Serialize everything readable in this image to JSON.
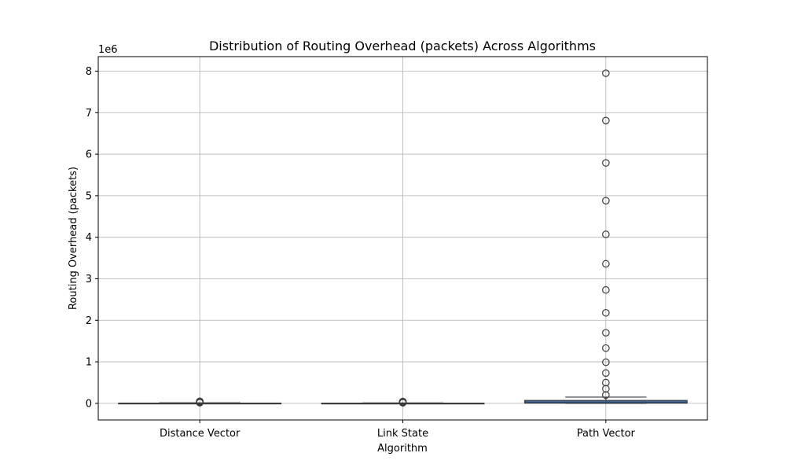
{
  "chart_data": {
    "type": "box",
    "title": "Distribution of Routing Overhead (packets) Across Algorithms",
    "xlabel": "Algorithm",
    "ylabel": "Routing Overhead (packets)",
    "y_offset_label": "1e6",
    "y_scale_note": "values in packets; tick labels shown in units of 1e6",
    "ylim": [
      -400000,
      8350000
    ],
    "yticks": [
      0,
      1,
      2,
      3,
      4,
      5,
      6,
      7,
      8
    ],
    "grid": true,
    "categories": [
      "Distance Vector",
      "Link State",
      "Path Vector"
    ],
    "series": [
      {
        "category": "Distance Vector",
        "whisker_low": 0,
        "q1": 1000,
        "median": 3000,
        "q3": 6000,
        "whisker_high": 12000,
        "outliers": [
          16000,
          20000,
          25000,
          30000,
          36000,
          42000,
          50000
        ]
      },
      {
        "category": "Link State",
        "whisker_low": 0,
        "q1": 800,
        "median": 2500,
        "q3": 5000,
        "whisker_high": 10000,
        "outliers": [
          14000,
          18000,
          22000,
          27000,
          32000,
          38000,
          45000
        ]
      },
      {
        "category": "Path Vector",
        "whisker_low": 0,
        "q1": 5000,
        "median": 20000,
        "q3": 70000,
        "whisker_high": 150000,
        "outliers": [
          200000,
          350000,
          500000,
          730000,
          990000,
          1330000,
          1700000,
          2180000,
          2730000,
          3360000,
          4070000,
          4880000,
          5790000,
          6810000,
          7950000
        ]
      }
    ],
    "box_color": "#3b6aa0",
    "line_color": "#3d3d3d"
  }
}
